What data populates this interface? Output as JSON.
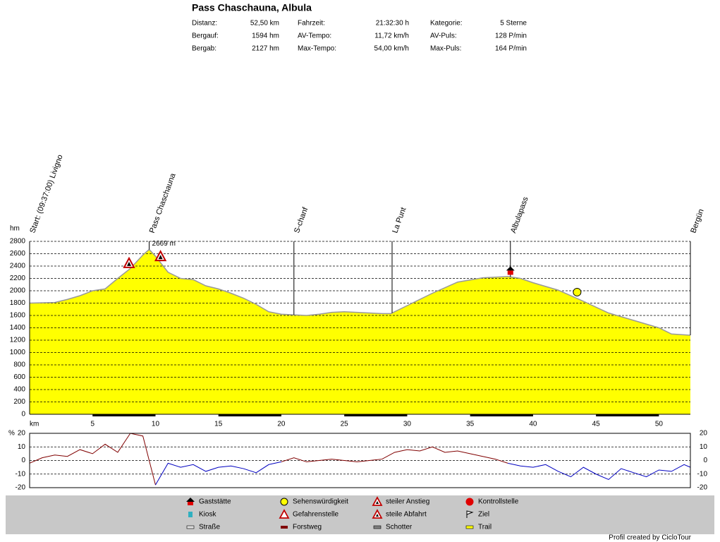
{
  "header": {
    "title": "Pass Chaschauna, Albula",
    "stats": [
      [
        "Distanz:",
        "52,50 km",
        "Fahrzeit:",
        "21:32:30 h",
        "Kategorie:",
        "5 Sterne"
      ],
      [
        "Bergauf:",
        "1594 hm",
        "AV-Tempo:",
        "11,72 km/h",
        "AV-Puls:",
        "128 P/min"
      ],
      [
        "Bergab:",
        "2127 hm",
        "Max-Tempo:",
        "54,00 km/h",
        "Max-Puls:",
        "164 P/min"
      ]
    ]
  },
  "chart_data": [
    {
      "type": "area",
      "y_label": "hm",
      "x_label": "km",
      "color": "#ffff00",
      "line_color": "#999999",
      "x": [
        0,
        2,
        3,
        4,
        5,
        6,
        7,
        8,
        9,
        9.5,
        10,
        11,
        12,
        13,
        14,
        15,
        16,
        17,
        18,
        19,
        20,
        21,
        22,
        23,
        24,
        25,
        26,
        27,
        28,
        28.7,
        30,
        32,
        34,
        36,
        38,
        39,
        40,
        42,
        44,
        46,
        48,
        50,
        51,
        52.5
      ],
      "values": [
        1800,
        1810,
        1860,
        1920,
        2000,
        2030,
        2200,
        2360,
        2580,
        2669,
        2560,
        2300,
        2200,
        2180,
        2080,
        2030,
        1960,
        1880,
        1780,
        1660,
        1620,
        1610,
        1600,
        1620,
        1650,
        1660,
        1650,
        1640,
        1630,
        1630,
        1760,
        1960,
        2140,
        2210,
        2230,
        2200,
        2130,
        2010,
        1830,
        1640,
        1520,
        1400,
        1300,
        1280
      ],
      "xlim": [
        0,
        52.5
      ],
      "ylim": [
        0,
        2800
      ],
      "xticks": [
        5,
        10,
        15,
        20,
        25,
        30,
        35,
        40,
        45,
        50
      ],
      "yticks": [
        0,
        200,
        400,
        600,
        800,
        1000,
        1200,
        1400,
        1600,
        1800,
        2000,
        2200,
        2400,
        2600,
        2800
      ],
      "grid": true,
      "waypoints": [
        {
          "label": "Start: (09:37:00) Livigno",
          "x": 0
        },
        {
          "label": "Pass Chaschauna",
          "x": 9.5
        },
        {
          "label": "S-chanf",
          "x": 21
        },
        {
          "label": "La Punt",
          "x": 28.8
        },
        {
          "label": "Albulapass",
          "x": 38.2
        },
        {
          "label": "Bergün",
          "x": 52.5
        }
      ],
      "annotation": {
        "label": "2669 m",
        "x": 9.5,
        "value": 2669
      },
      "markers": [
        {
          "icon": "climb",
          "x": 7.9
        },
        {
          "icon": "descent",
          "x": 10.4
        },
        {
          "icon": "inn",
          "x": 38.2
        },
        {
          "icon": "sight",
          "x": 43.5
        }
      ]
    },
    {
      "type": "line",
      "y_unit": "%",
      "x": [
        0,
        1,
        2,
        3,
        4,
        5,
        6,
        7,
        8,
        9,
        10,
        11,
        12,
        13,
        14,
        15,
        16,
        17,
        18,
        19,
        20,
        21,
        22,
        23,
        24,
        25,
        26,
        27,
        28,
        29,
        30,
        31,
        32,
        33,
        34,
        35,
        36,
        37,
        38,
        39,
        40,
        41,
        42,
        43,
        44,
        45,
        46,
        47,
        48,
        49,
        50,
        51,
        52,
        52.5
      ],
      "series": [
        {
          "color": "#800000",
          "values": [
            -2,
            2,
            4,
            3,
            8,
            5,
            12,
            6,
            20,
            18,
            -18,
            null,
            null,
            null,
            null,
            null,
            null,
            null,
            null,
            null,
            -1,
            2,
            -1,
            0,
            1,
            0,
            -1,
            0,
            1,
            6,
            8,
            7,
            10,
            6,
            7,
            5,
            3,
            1,
            -2,
            null,
            null,
            null,
            null,
            null,
            null,
            null,
            null,
            null,
            null,
            null,
            null,
            null,
            null,
            null
          ]
        },
        {
          "color": "#0000c0",
          "values": [
            null,
            null,
            null,
            null,
            null,
            null,
            null,
            null,
            null,
            null,
            -18,
            -2,
            -5,
            -3,
            -8,
            -5,
            -4,
            -6,
            -9,
            -3,
            -1,
            null,
            null,
            null,
            null,
            null,
            null,
            null,
            null,
            null,
            null,
            null,
            null,
            null,
            null,
            null,
            null,
            null,
            -2,
            -4,
            -5,
            -3,
            -8,
            -12,
            -5,
            -10,
            -14,
            -6,
            -9,
            -12,
            -7,
            -8,
            -3,
            -5
          ]
        }
      ],
      "xlim": [
        0,
        52.5
      ],
      "ylim": [
        -20,
        20
      ],
      "yticks": [
        20,
        10,
        0,
        -10,
        -20
      ],
      "y2lim": [
        -20,
        20
      ],
      "y2ticks": [
        20,
        10,
        0,
        -10,
        -20
      ],
      "grid": true
    }
  ],
  "legend": [
    "Gaststätte",
    "Kiosk",
    "Straße",
    "Sehenswürdigkeit",
    "Gefahrenstelle",
    "Forstweg",
    "steiler Anstieg",
    "steile Abfahrt",
    "Schotter",
    "Kontrollstelle",
    "Ziel",
    "Trail"
  ],
  "footer": "Profil created by CicloTour"
}
